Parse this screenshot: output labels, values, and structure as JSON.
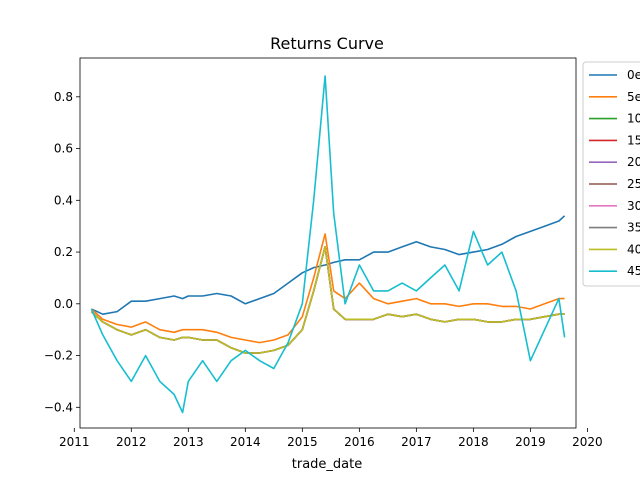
{
  "chart_data": {
    "type": "line",
    "title": "Returns Curve",
    "xlabel": "trade_date",
    "ylabel": "",
    "xlim": [
      2011.1,
      2019.8
    ],
    "ylim": [
      -0.48,
      0.95
    ],
    "x_ticks": [
      "2011",
      "2012",
      "2013",
      "2014",
      "2015",
      "2016",
      "2017",
      "2018",
      "2019",
      "2020"
    ],
    "y_ticks": [
      "−0.4",
      "−0.2",
      "0.0",
      "0.2",
      "0.4",
      "0.6",
      "0.8"
    ],
    "grid": false,
    "legend_position": "outside-right",
    "x": [
      2011.3,
      2011.5,
      2011.75,
      2012.0,
      2012.25,
      2012.5,
      2012.75,
      2012.9,
      2013.0,
      2013.25,
      2013.5,
      2013.75,
      2014.0,
      2014.25,
      2014.5,
      2014.75,
      2015.0,
      2015.2,
      2015.4,
      2015.55,
      2015.75,
      2016.0,
      2016.25,
      2016.5,
      2016.75,
      2017.0,
      2017.25,
      2017.5,
      2017.75,
      2018.0,
      2018.25,
      2018.5,
      2018.75,
      2019.0,
      2019.25,
      2019.5,
      2019.6
    ],
    "series": [
      {
        "name": "0e",
        "color": "#1f77b4",
        "values": [
          -0.02,
          -0.04,
          -0.03,
          0.01,
          0.01,
          0.02,
          0.03,
          0.02,
          0.03,
          0.03,
          0.04,
          0.03,
          0.0,
          0.02,
          0.04,
          0.08,
          0.12,
          0.14,
          0.15,
          0.16,
          0.17,
          0.17,
          0.2,
          0.2,
          0.22,
          0.24,
          0.22,
          0.21,
          0.19,
          0.2,
          0.21,
          0.23,
          0.26,
          0.28,
          0.3,
          0.32,
          0.34
        ]
      },
      {
        "name": "5e",
        "color": "#ff7f0e",
        "values": [
          -0.02,
          -0.06,
          -0.08,
          -0.09,
          -0.07,
          -0.1,
          -0.11,
          -0.1,
          -0.1,
          -0.1,
          -0.11,
          -0.13,
          -0.14,
          -0.15,
          -0.14,
          -0.12,
          -0.05,
          0.1,
          0.27,
          0.05,
          0.02,
          0.08,
          0.02,
          0.0,
          0.01,
          0.02,
          0.0,
          0.0,
          -0.01,
          0.0,
          0.0,
          -0.01,
          -0.01,
          -0.02,
          0.0,
          0.02,
          0.02
        ]
      },
      {
        "name": "10",
        "color": "#2ca02c",
        "values": [
          -0.03,
          -0.07,
          -0.1,
          -0.12,
          -0.1,
          -0.13,
          -0.14,
          -0.13,
          -0.13,
          -0.14,
          -0.14,
          -0.17,
          -0.19,
          -0.19,
          -0.18,
          -0.16,
          -0.1,
          0.05,
          0.22,
          -0.02,
          -0.06,
          -0.06,
          -0.06,
          -0.04,
          -0.05,
          -0.04,
          -0.06,
          -0.07,
          -0.06,
          -0.06,
          -0.07,
          -0.07,
          -0.06,
          -0.06,
          -0.05,
          -0.04,
          -0.04
        ]
      },
      {
        "name": "15",
        "color": "#d62728",
        "values": [
          -0.03,
          -0.07,
          -0.1,
          -0.12,
          -0.1,
          -0.13,
          -0.14,
          -0.13,
          -0.13,
          -0.14,
          -0.14,
          -0.17,
          -0.19,
          -0.19,
          -0.18,
          -0.16,
          -0.1,
          0.05,
          0.22,
          -0.02,
          -0.06,
          -0.06,
          -0.06,
          -0.04,
          -0.05,
          -0.04,
          -0.06,
          -0.07,
          -0.06,
          -0.06,
          -0.07,
          -0.07,
          -0.06,
          -0.06,
          -0.05,
          -0.04,
          -0.04
        ]
      },
      {
        "name": "20",
        "color": "#9467bd",
        "values": [
          -0.03,
          -0.07,
          -0.1,
          -0.12,
          -0.1,
          -0.13,
          -0.14,
          -0.13,
          -0.13,
          -0.14,
          -0.14,
          -0.17,
          -0.19,
          -0.19,
          -0.18,
          -0.16,
          -0.1,
          0.05,
          0.22,
          -0.02,
          -0.06,
          -0.06,
          -0.06,
          -0.04,
          -0.05,
          -0.04,
          -0.06,
          -0.07,
          -0.06,
          -0.06,
          -0.07,
          -0.07,
          -0.06,
          -0.06,
          -0.05,
          -0.04,
          -0.04
        ]
      },
      {
        "name": "25",
        "color": "#8c564b",
        "values": [
          -0.03,
          -0.07,
          -0.1,
          -0.12,
          -0.1,
          -0.13,
          -0.14,
          -0.13,
          -0.13,
          -0.14,
          -0.14,
          -0.17,
          -0.19,
          -0.19,
          -0.18,
          -0.16,
          -0.1,
          0.05,
          0.22,
          -0.02,
          -0.06,
          -0.06,
          -0.06,
          -0.04,
          -0.05,
          -0.04,
          -0.06,
          -0.07,
          -0.06,
          -0.06,
          -0.07,
          -0.07,
          -0.06,
          -0.06,
          -0.05,
          -0.04,
          -0.04
        ]
      },
      {
        "name": "30",
        "color": "#e377c2",
        "values": [
          -0.03,
          -0.07,
          -0.1,
          -0.12,
          -0.1,
          -0.13,
          -0.14,
          -0.13,
          -0.13,
          -0.14,
          -0.14,
          -0.17,
          -0.19,
          -0.19,
          -0.18,
          -0.16,
          -0.1,
          0.05,
          0.22,
          -0.02,
          -0.06,
          -0.06,
          -0.06,
          -0.04,
          -0.05,
          -0.04,
          -0.06,
          -0.07,
          -0.06,
          -0.06,
          -0.07,
          -0.07,
          -0.06,
          -0.06,
          -0.05,
          -0.04,
          -0.04
        ]
      },
      {
        "name": "35",
        "color": "#7f7f7f",
        "values": [
          -0.03,
          -0.07,
          -0.1,
          -0.12,
          -0.1,
          -0.13,
          -0.14,
          -0.13,
          -0.13,
          -0.14,
          -0.14,
          -0.17,
          -0.19,
          -0.19,
          -0.18,
          -0.16,
          -0.1,
          0.05,
          0.22,
          -0.02,
          -0.06,
          -0.06,
          -0.06,
          -0.04,
          -0.05,
          -0.04,
          -0.06,
          -0.07,
          -0.06,
          -0.06,
          -0.07,
          -0.07,
          -0.06,
          -0.06,
          -0.05,
          -0.04,
          -0.04
        ]
      },
      {
        "name": "40",
        "color": "#bcbd22",
        "values": [
          -0.03,
          -0.07,
          -0.1,
          -0.12,
          -0.1,
          -0.13,
          -0.14,
          -0.13,
          -0.13,
          -0.14,
          -0.14,
          -0.17,
          -0.19,
          -0.19,
          -0.18,
          -0.16,
          -0.1,
          0.05,
          0.22,
          -0.02,
          -0.06,
          -0.06,
          -0.06,
          -0.04,
          -0.05,
          -0.04,
          -0.06,
          -0.07,
          -0.06,
          -0.06,
          -0.07,
          -0.07,
          -0.06,
          -0.06,
          -0.05,
          -0.04,
          -0.04
        ]
      },
      {
        "name": "45",
        "color": "#17becf",
        "values": [
          -0.02,
          -0.12,
          -0.22,
          -0.3,
          -0.2,
          -0.3,
          -0.35,
          -0.42,
          -0.3,
          -0.22,
          -0.3,
          -0.22,
          -0.18,
          -0.22,
          -0.25,
          -0.15,
          0.0,
          0.4,
          0.88,
          0.35,
          0.0,
          0.15,
          0.05,
          0.05,
          0.08,
          0.05,
          0.1,
          0.15,
          0.05,
          0.28,
          0.15,
          0.2,
          0.05,
          -0.22,
          -0.1,
          0.02,
          -0.13
        ]
      }
    ]
  }
}
